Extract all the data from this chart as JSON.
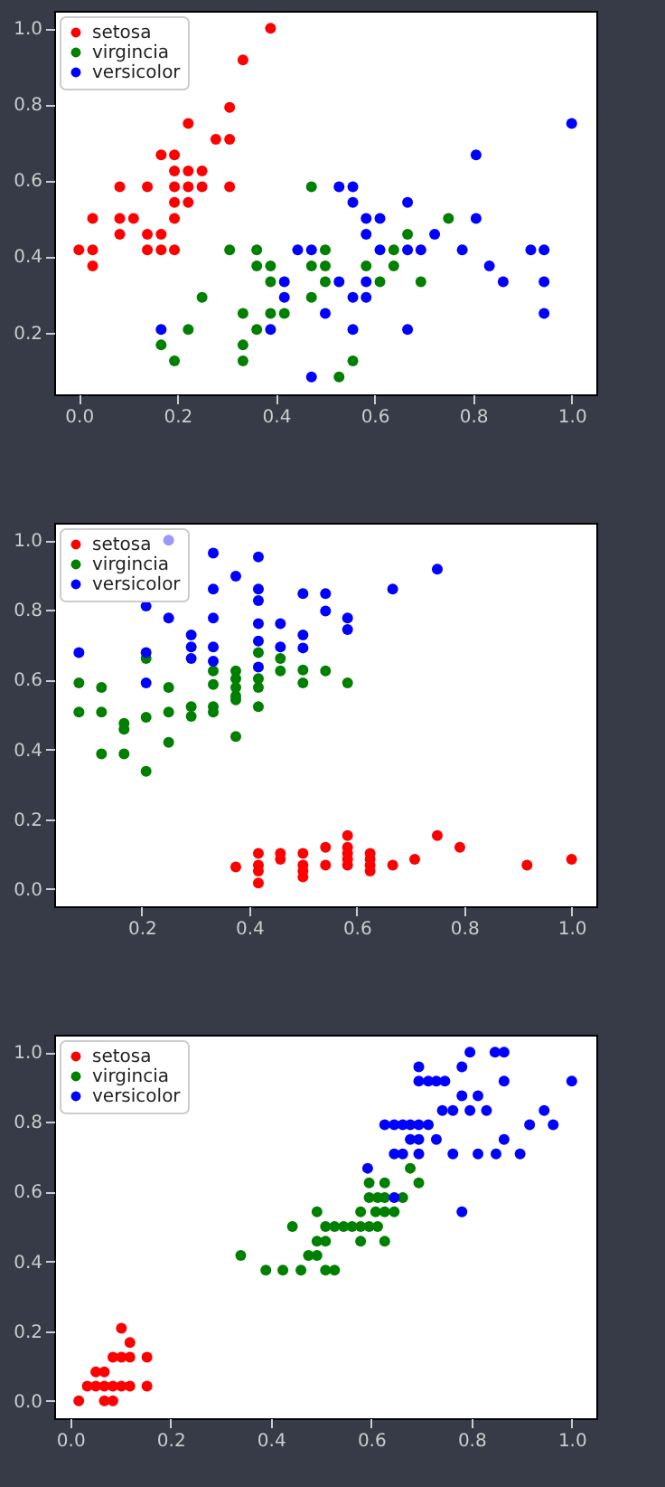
{
  "chart_data": [
    {
      "type": "scatter",
      "legend": "top left",
      "marker": "circle",
      "grid": false,
      "xlim": [
        -0.05,
        1.05
      ],
      "ylim": [
        0.037,
        1.046
      ],
      "xticks": [
        {
          "value": 0,
          "label": "0.0"
        },
        {
          "value": 0.2,
          "label": "0.2"
        },
        {
          "value": 0.4,
          "label": "0.4"
        },
        {
          "value": 0.6,
          "label": "0.6"
        },
        {
          "value": 0.8,
          "label": "0.8"
        },
        {
          "value": 1,
          "label": "1.0"
        }
      ],
      "yticks": [
        {
          "value": 0.2,
          "label": "0.2"
        },
        {
          "value": 0.4,
          "label": "0.4"
        },
        {
          "value": 0.6,
          "label": "0.6"
        },
        {
          "value": 0.8,
          "label": "0.8"
        },
        {
          "value": 1,
          "label": "1.0"
        }
      ],
      "series": [
        {
          "name": "setosa",
          "color": "#ff0000",
          "x": [
            0,
            0.028,
            0.028,
            0.028,
            0.083,
            0.083,
            0.083,
            0.111,
            0.139,
            0.139,
            0.139,
            0.167,
            0.167,
            0.167,
            0.194,
            0.194,
            0.194,
            0.194,
            0.194,
            0.194,
            0.222,
            0.222,
            0.222,
            0.222,
            0.25,
            0.25,
            0.278,
            0.306,
            0.306,
            0.306,
            0.333,
            0.389
          ],
          "values": [
            0.417,
            0.417,
            0.5,
            0.375,
            0.583,
            0.5,
            0.458,
            0.5,
            0.583,
            0.458,
            0.417,
            0.667,
            0.458,
            0.417,
            0.667,
            0.625,
            0.583,
            0.542,
            0.5,
            0.417,
            0.75,
            0.625,
            0.583,
            0.542,
            0.625,
            0.583,
            0.708,
            0.792,
            0.708,
            0.583,
            0.917,
            1.0
          ]
        },
        {
          "name": "virgincia",
          "color": "#008000",
          "x": [
            0.167,
            0.194,
            0.222,
            0.25,
            0.306,
            0.333,
            0.333,
            0.333,
            0.361,
            0.361,
            0.361,
            0.389,
            0.389,
            0.389,
            0.417,
            0.472,
            0.472,
            0.472,
            0.5,
            0.5,
            0.5,
            0.528,
            0.556,
            0.583,
            0.611,
            0.639,
            0.639,
            0.667,
            0.694,
            0.75
          ],
          "values": [
            0.167,
            0.125,
            0.208,
            0.292,
            0.417,
            0.25,
            0.167,
            0.125,
            0.417,
            0.375,
            0.208,
            0.375,
            0.333,
            0.25,
            0.25,
            0.583,
            0.375,
            0.292,
            0.417,
            0.375,
            0.333,
            0.083,
            0.125,
            0.375,
            0.333,
            0.417,
            0.375,
            0.458,
            0.333,
            0.5
          ]
        },
        {
          "name": "versicolor",
          "color": "#0000ff",
          "x": [
            0.167,
            0.389,
            0.417,
            0.417,
            0.444,
            0.472,
            0.472,
            0.5,
            0.528,
            0.528,
            0.556,
            0.556,
            0.556,
            0.556,
            0.583,
            0.583,
            0.583,
            0.583,
            0.611,
            0.611,
            0.667,
            0.667,
            0.667,
            0.694,
            0.722,
            0.778,
            0.806,
            0.806,
            0.833,
            0.861,
            0.917,
            0.944,
            0.944,
            0.944,
            1.0
          ],
          "values": [
            0.208,
            0.208,
            0.333,
            0.292,
            0.417,
            0.417,
            0.083,
            0.25,
            0.583,
            0.333,
            0.583,
            0.542,
            0.292,
            0.208,
            0.5,
            0.458,
            0.333,
            0.292,
            0.5,
            0.417,
            0.542,
            0.417,
            0.208,
            0.417,
            0.458,
            0.417,
            0.667,
            0.5,
            0.375,
            0.333,
            0.417,
            0.417,
            0.333,
            0.25,
            0.75
          ]
        }
      ]
    },
    {
      "type": "scatter",
      "legend": "top left",
      "marker": "circle",
      "grid": false,
      "xlim": [
        0.037,
        1.046
      ],
      "ylim": [
        -0.05,
        1.05
      ],
      "xticks": [
        {
          "value": 0.2,
          "label": "0.2"
        },
        {
          "value": 0.4,
          "label": "0.4"
        },
        {
          "value": 0.6,
          "label": "0.6"
        },
        {
          "value": 0.8,
          "label": "0.8"
        },
        {
          "value": 1,
          "label": "1.0"
        }
      ],
      "yticks": [
        {
          "value": 0,
          "label": "0.0"
        },
        {
          "value": 0.2,
          "label": "0.2"
        },
        {
          "value": 0.4,
          "label": "0.4"
        },
        {
          "value": 0.6,
          "label": "0.6"
        },
        {
          "value": 0.8,
          "label": "0.8"
        },
        {
          "value": 1,
          "label": "1.0"
        }
      ],
      "series": [
        {
          "name": "setosa",
          "color": "#ff0000",
          "x": [
            0.375,
            0.417,
            0.417,
            0.417,
            0.417,
            0.458,
            0.458,
            0.5,
            0.5,
            0.5,
            0.5,
            0.542,
            0.542,
            0.583,
            0.583,
            0.583,
            0.583,
            0.583,
            0.625,
            0.625,
            0.625,
            0.625,
            0.667,
            0.708,
            0.75,
            0.792,
            0.917,
            1.0
          ],
          "values": [
            0.063,
            0.102,
            0.068,
            0.051,
            0.017,
            0.102,
            0.085,
            0.102,
            0.068,
            0.051,
            0.034,
            0.119,
            0.068,
            0.153,
            0.119,
            0.102,
            0.085,
            0.068,
            0.102,
            0.085,
            0.068,
            0.051,
            0.068,
            0.085,
            0.153,
            0.119,
            0.068,
            0.085
          ]
        },
        {
          "name": "virgincia",
          "color": "#008000",
          "x": [
            0.083,
            0.083,
            0.125,
            0.125,
            0.125,
            0.167,
            0.167,
            0.167,
            0.208,
            0.208,
            0.208,
            0.25,
            0.25,
            0.25,
            0.292,
            0.292,
            0.333,
            0.333,
            0.333,
            0.333,
            0.375,
            0.375,
            0.375,
            0.375,
            0.375,
            0.375,
            0.417,
            0.417,
            0.417,
            0.417,
            0.458,
            0.458,
            0.5,
            0.5,
            0.542,
            0.583
          ],
          "values": [
            0.591,
            0.507,
            0.578,
            0.507,
            0.387,
            0.475,
            0.458,
            0.387,
            0.661,
            0.492,
            0.337,
            0.578,
            0.507,
            0.42,
            0.523,
            0.495,
            0.625,
            0.586,
            0.523,
            0.507,
            0.625,
            0.603,
            0.578,
            0.553,
            0.542,
            0.437,
            0.678,
            0.603,
            0.578,
            0.523,
            0.661,
            0.625,
            0.628,
            0.591,
            0.625,
            0.591
          ]
        },
        {
          "name": "versicolor",
          "color": "#0000ff",
          "x": [
            0.083,
            0.208,
            0.208,
            0.208,
            0.25,
            0.25,
            0.292,
            0.292,
            0.292,
            0.333,
            0.333,
            0.333,
            0.333,
            0.333,
            0.375,
            0.417,
            0.417,
            0.417,
            0.417,
            0.417,
            0.417,
            0.458,
            0.458,
            0.5,
            0.5,
            0.5,
            0.542,
            0.542,
            0.583,
            0.583,
            0.667,
            0.75
          ],
          "values": [
            0.678,
            0.811,
            0.678,
            0.591,
            1.0,
            0.777,
            0.728,
            0.694,
            0.661,
            0.963,
            0.86,
            0.777,
            0.694,
            0.653,
            0.897,
            0.952,
            0.86,
            0.827,
            0.761,
            0.711,
            0.636,
            0.761,
            0.694,
            0.847,
            0.728,
            0.691,
            0.847,
            0.797,
            0.777,
            0.744,
            0.86,
            0.917
          ]
        }
      ]
    },
    {
      "type": "scatter",
      "legend": "top left",
      "marker": "circle",
      "grid": false,
      "xlim": [
        -0.032,
        1.049
      ],
      "ylim": [
        -0.05,
        1.05
      ],
      "xticks": [
        {
          "value": 0,
          "label": "0.0"
        },
        {
          "value": 0.2,
          "label": "0.2"
        },
        {
          "value": 0.4,
          "label": "0.4"
        },
        {
          "value": 0.6,
          "label": "0.6"
        },
        {
          "value": 0.8,
          "label": "0.8"
        },
        {
          "value": 1,
          "label": "1.0"
        }
      ],
      "yticks": [
        {
          "value": 0,
          "label": "0.0"
        },
        {
          "value": 0.2,
          "label": "0.2"
        },
        {
          "value": 0.4,
          "label": "0.4"
        },
        {
          "value": 0.6,
          "label": "0.6"
        },
        {
          "value": 0.8,
          "label": "0.8"
        },
        {
          "value": 1,
          "label": "1.0"
        }
      ],
      "series": [
        {
          "name": "setosa",
          "color": "#ff0000",
          "x": [
            0.017,
            0.068,
            0.085,
            0.034,
            0.051,
            0.068,
            0.085,
            0.102,
            0.119,
            0.153,
            0.051,
            0.068,
            0.085,
            0.102,
            0.119,
            0.153,
            0.119,
            0.102
          ],
          "values": [
            0,
            0,
            0,
            0.042,
            0.042,
            0.042,
            0.042,
            0.042,
            0.042,
            0.042,
            0.083,
            0.083,
            0.125,
            0.125,
            0.125,
            0.125,
            0.167,
            0.208
          ]
        },
        {
          "name": "virgincia",
          "color": "#008000",
          "x": [
            0.34,
            0.39,
            0.424,
            0.46,
            0.509,
            0.527,
            0.443,
            0.475,
            0.492,
            0.492,
            0.509,
            0.579,
            0.627,
            0.509,
            0.527,
            0.545,
            0.562,
            0.579,
            0.596,
            0.613,
            0.492,
            0.579,
            0.609,
            0.627,
            0.646,
            0.596,
            0.613,
            0.627,
            0.663,
            0.596,
            0.627,
            0.695,
            0.678
          ],
          "values": [
            0.417,
            0.375,
            0.375,
            0.375,
            0.375,
            0.375,
            0.5,
            0.417,
            0.417,
            0.458,
            0.458,
            0.458,
            0.458,
            0.5,
            0.5,
            0.5,
            0.5,
            0.5,
            0.5,
            0.5,
            0.542,
            0.542,
            0.542,
            0.542,
            0.542,
            0.583,
            0.583,
            0.583,
            0.583,
            0.625,
            0.625,
            0.625,
            0.667
          ]
        },
        {
          "name": "versicolor",
          "color": "#0000ff",
          "x": [
            0.593,
            0.646,
            0.781,
            0.646,
            0.663,
            0.695,
            0.763,
            0.813,
            0.849,
            0.897,
            0.678,
            0.695,
            0.73,
            0.865,
            0.627,
            0.646,
            0.663,
            0.678,
            0.695,
            0.714,
            0.916,
            0.963,
            0.742,
            0.763,
            0.797,
            0.83,
            0.945,
            0.781,
            0.813,
            0.695,
            0.714,
            0.73,
            0.747,
            0.865,
            1.0,
            0.695,
            0.781,
            0.797,
            0.847,
            0.865
          ],
          "values": [
            0.667,
            0.583,
            0.542,
            0.708,
            0.708,
            0.708,
            0.708,
            0.708,
            0.708,
            0.708,
            0.75,
            0.75,
            0.75,
            0.75,
            0.792,
            0.792,
            0.792,
            0.792,
            0.792,
            0.792,
            0.792,
            0.792,
            0.833,
            0.833,
            0.833,
            0.833,
            0.833,
            0.875,
            0.875,
            0.917,
            0.917,
            0.917,
            0.917,
            0.917,
            0.917,
            0.958,
            0.958,
            1.0,
            1.0,
            1.0
          ]
        }
      ]
    }
  ]
}
